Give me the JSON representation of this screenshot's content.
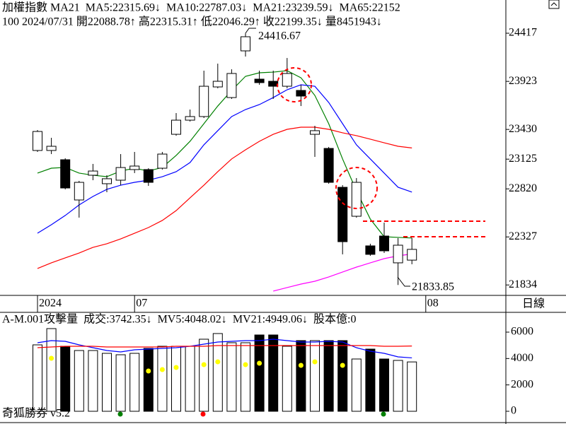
{
  "chart_data": [
    {
      "type": "candlestick",
      "header": [
        {
          "text": "加權指數 MA21",
          "color": "#000000"
        },
        {
          "text": "MA5:22315.69↓",
          "color": "#008000"
        },
        {
          "text": "MA10:22787.03↓",
          "color": "#0000ff"
        },
        {
          "text": "MA21:23239.59↓",
          "color": "#ff0000"
        },
        {
          "text": "MA65:22152",
          "color": "#ff00ff"
        }
      ],
      "info_line": "100 2024/07/31 開22088.78↑ 高22315.31↑ 低22046.29↑ 收22199.35↓ 量8451943↓",
      "period_label": "日線",
      "categories": [
        "2024",
        null,
        null,
        null,
        null,
        null,
        null,
        "07",
        null,
        null,
        null,
        null,
        null,
        null,
        null,
        null,
        null,
        null,
        null,
        null,
        null,
        null,
        null,
        null,
        null,
        null,
        null,
        null,
        "08"
      ],
      "open": [
        23214,
        23214,
        23119,
        22706,
        22960,
        22873,
        22909,
        23018,
        23018,
        23032,
        23380,
        23525,
        23562,
        23866,
        23757,
        24236,
        23946,
        23924,
        23873,
        23830,
        23380,
        23235,
        22836,
        22539,
        22235,
        22336,
        22061,
        22088.78,
        null
      ],
      "high": [
        23424,
        23344,
        23134,
        22902,
        23076,
        22960,
        23177,
        23199,
        23032,
        23199,
        23598,
        23634,
        24033,
        24105,
        24047,
        24416.67,
        24033,
        24033,
        24163,
        23888,
        23467,
        23250,
        22858,
        22931,
        22257,
        22474,
        22315,
        22315.31,
        null
      ],
      "low": [
        23199,
        23177,
        22815,
        22525,
        22909,
        22786,
        22858,
        22982,
        22851,
        23018,
        23366,
        23511,
        23547,
        23852,
        23743,
        24178,
        23888,
        23743,
        23852,
        23670,
        23148,
        22873,
        22148,
        22525,
        22133,
        22162,
        21833.85,
        22046.29,
        null
      ],
      "close": [
        23409,
        23257,
        22829,
        22887,
        23003,
        22924,
        23039,
        23054,
        22887,
        23177,
        23525,
        23562,
        23873,
        23924,
        24004,
        24381,
        23910,
        23873,
        24004,
        23772,
        23417,
        22887,
        22278,
        22887,
        22148,
        22184,
        22242,
        22199.35,
        null
      ],
      "up_color": "#ffffff",
      "down_color": "#000000",
      "lines": [
        {
          "color": "#008000",
          "values": [
            22982,
            23032,
            23040,
            22982,
            22960,
            22945,
            23003,
            23032,
            23003,
            23040,
            23163,
            23308,
            23489,
            23670,
            23830,
            23975,
            24011,
            24018,
            24033,
            23960,
            23779,
            23489,
            23127,
            22800,
            22510,
            22329,
            22322,
            22315.69,
            null
          ]
        },
        {
          "color": "#0000ff",
          "values": [
            22365,
            22452,
            22547,
            22655,
            22742,
            22815,
            22858,
            22887,
            22909,
            22945,
            22996,
            23090,
            23272,
            23417,
            23562,
            23634,
            23685,
            23757,
            23837,
            23888,
            23873,
            23707,
            23489,
            23272,
            23127,
            22982,
            22837,
            22787.03,
            null
          ]
        },
        {
          "color": "#ff0000",
          "values": [
            22003,
            22061,
            22112,
            22162,
            22220,
            22257,
            22307,
            22365,
            22423,
            22496,
            22597,
            22728,
            22858,
            22996,
            23127,
            23221,
            23308,
            23380,
            23431,
            23453,
            23453,
            23431,
            23395,
            23366,
            23330,
            23293,
            23257,
            23239.59,
            null
          ]
        },
        {
          "color": "#ff00ff",
          "values": [
            null,
            null,
            null,
            null,
            null,
            null,
            null,
            null,
            null,
            null,
            null,
            null,
            null,
            null,
            null,
            null,
            null,
            21771,
            21807,
            21843,
            21872,
            21916,
            21967,
            22017,
            22061,
            22104,
            22133,
            22152,
            null
          ]
        }
      ],
      "ylim": [
        21727,
        24758
      ],
      "yticks": [
        24417,
        23923,
        23430,
        23125,
        22820,
        22327,
        21834
      ]
    },
    {
      "type": "volume",
      "header": [
        {
          "text": "A-M.001攻擊量",
          "color": "#000000"
        },
        {
          "text": "成交:3742.35↓",
          "color": "#008000"
        },
        {
          "text": "MV5:4048.02↓",
          "color": "#0000ff"
        },
        {
          "text": "MV21:4949.06↓",
          "color": "#ff0000"
        },
        {
          "text": "股本億:0",
          "color": "#ff00ff"
        }
      ],
      "values": [
        5036,
        6268,
        4929,
        4607,
        4607,
        4393,
        4286,
        4393,
        4768,
        4929,
        4929,
        4929,
        5464,
        5893,
        5196,
        5196,
        5786,
        5786,
        4929,
        5357,
        5357,
        5357,
        5357,
        3964,
        4714,
        3964,
        3857,
        3742.35,
        null
      ],
      "lines": [
        {
          "color": "#0000ff",
          "values": [
            5196,
            5357,
            5304,
            5036,
            4821,
            4607,
            4500,
            4661,
            4714,
            4768,
            4821,
            4929,
            5089,
            5250,
            5304,
            5357,
            5357,
            5464,
            5357,
            5250,
            5250,
            5304,
            5250,
            4821,
            4553,
            4393,
            4125,
            4048.02,
            null
          ]
        },
        {
          "color": "#ff0000",
          "values": [
            4821,
            4875,
            4929,
            4929,
            4929,
            4875,
            4875,
            4875,
            4875,
            4875,
            4929,
            4929,
            4929,
            4982,
            4982,
            4982,
            4982,
            4982,
            4982,
            4982,
            4982,
            4982,
            4982,
            4982,
            4982,
            4929,
            4929,
            4949.06,
            null
          ]
        }
      ],
      "dots": {
        "color": "#ffff00",
        "values": [
          null,
          4018,
          null,
          null,
          null,
          null,
          null,
          null,
          3054,
          3161,
          3321,
          null,
          3536,
          3750,
          null,
          3536,
          3643,
          null,
          null,
          3482,
          3750,
          null,
          3482,
          null,
          null,
          null,
          null,
          null,
          null
        ]
      },
      "ylim": [
        0,
        7500
      ],
      "yticks": [
        0,
        2000,
        4000,
        6000
      ]
    }
  ],
  "footer": "奇狐勝券 v5.2"
}
